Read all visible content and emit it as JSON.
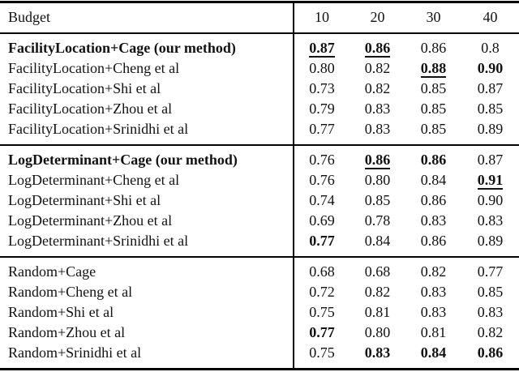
{
  "colors": {
    "text": "#121212",
    "rule": "#000000",
    "background": "#ffffff"
  },
  "table": {
    "header": {
      "label": "Budget",
      "budgets": [
        "10",
        "20",
        "30",
        "40"
      ]
    },
    "groups": [
      {
        "rows": [
          {
            "label": "FacilityLocation+Cage (our method)",
            "bold": true,
            "values": [
              {
                "t": "0.87",
                "b": true,
                "u": true
              },
              {
                "t": "0.86",
                "b": true,
                "u": true
              },
              {
                "t": "0.86"
              },
              {
                "t": "0.8"
              }
            ]
          },
          {
            "label": "FacilityLocation+Cheng et al",
            "values": [
              {
                "t": "0.80"
              },
              {
                "t": "0.82"
              },
              {
                "t": "0.88",
                "b": true,
                "u": true
              },
              {
                "t": "0.90",
                "b": true
              }
            ]
          },
          {
            "label": "FacilityLocation+Shi et al",
            "values": [
              {
                "t": "0.73"
              },
              {
                "t": "0.82"
              },
              {
                "t": "0.85"
              },
              {
                "t": "0.87"
              }
            ]
          },
          {
            "label": "FacilityLocation+Zhou et al",
            "values": [
              {
                "t": "0.79"
              },
              {
                "t": "0.83"
              },
              {
                "t": "0.85"
              },
              {
                "t": "0.85"
              }
            ]
          },
          {
            "label": "FacilityLocation+Srinidhi et al",
            "values": [
              {
                "t": "0.77"
              },
              {
                "t": "0.83"
              },
              {
                "t": "0.85"
              },
              {
                "t": "0.89"
              }
            ]
          }
        ]
      },
      {
        "rows": [
          {
            "label": "LogDeterminant+Cage (our method)",
            "bold": true,
            "values": [
              {
                "t": "0.76"
              },
              {
                "t": "0.86",
                "b": true,
                "u": true
              },
              {
                "t": "0.86",
                "b": true
              },
              {
                "t": "0.87"
              }
            ]
          },
          {
            "label": "LogDeterminant+Cheng et al",
            "values": [
              {
                "t": "0.76"
              },
              {
                "t": "0.80"
              },
              {
                "t": "0.84"
              },
              {
                "t": "0.91",
                "b": true,
                "u": true
              }
            ]
          },
          {
            "label": "LogDeterminant+Shi et al",
            "values": [
              {
                "t": "0.74"
              },
              {
                "t": "0.85"
              },
              {
                "t": "0.86"
              },
              {
                "t": "0.90"
              }
            ]
          },
          {
            "label": "LogDeterminant+Zhou et al",
            "values": [
              {
                "t": "0.69"
              },
              {
                "t": "0.78"
              },
              {
                "t": "0.83"
              },
              {
                "t": "0.83"
              }
            ]
          },
          {
            "label": "LogDeterminant+Srinidhi et al",
            "values": [
              {
                "t": "0.77",
                "b": true
              },
              {
                "t": "0.84"
              },
              {
                "t": "0.86"
              },
              {
                "t": "0.89"
              }
            ]
          }
        ]
      },
      {
        "rows": [
          {
            "label": "Random+Cage",
            "values": [
              {
                "t": "0.68"
              },
              {
                "t": "0.68"
              },
              {
                "t": "0.82"
              },
              {
                "t": "0.77"
              }
            ]
          },
          {
            "label": "Random+Cheng et al",
            "values": [
              {
                "t": "0.72"
              },
              {
                "t": "0.82"
              },
              {
                "t": "0.83"
              },
              {
                "t": "0.85"
              }
            ]
          },
          {
            "label": "Random+Shi et al",
            "values": [
              {
                "t": "0.75"
              },
              {
                "t": "0.81"
              },
              {
                "t": "0.83"
              },
              {
                "t": "0.83"
              }
            ]
          },
          {
            "label": "Random+Zhou et al",
            "values": [
              {
                "t": "0.77",
                "b": true
              },
              {
                "t": "0.80"
              },
              {
                "t": "0.81"
              },
              {
                "t": "0.82"
              }
            ]
          },
          {
            "label": "Random+Srinidhi et al",
            "values": [
              {
                "t": "0.75"
              },
              {
                "t": "0.83",
                "b": true
              },
              {
                "t": "0.84",
                "b": true
              },
              {
                "t": "0.86",
                "b": true
              }
            ]
          }
        ]
      }
    ]
  }
}
